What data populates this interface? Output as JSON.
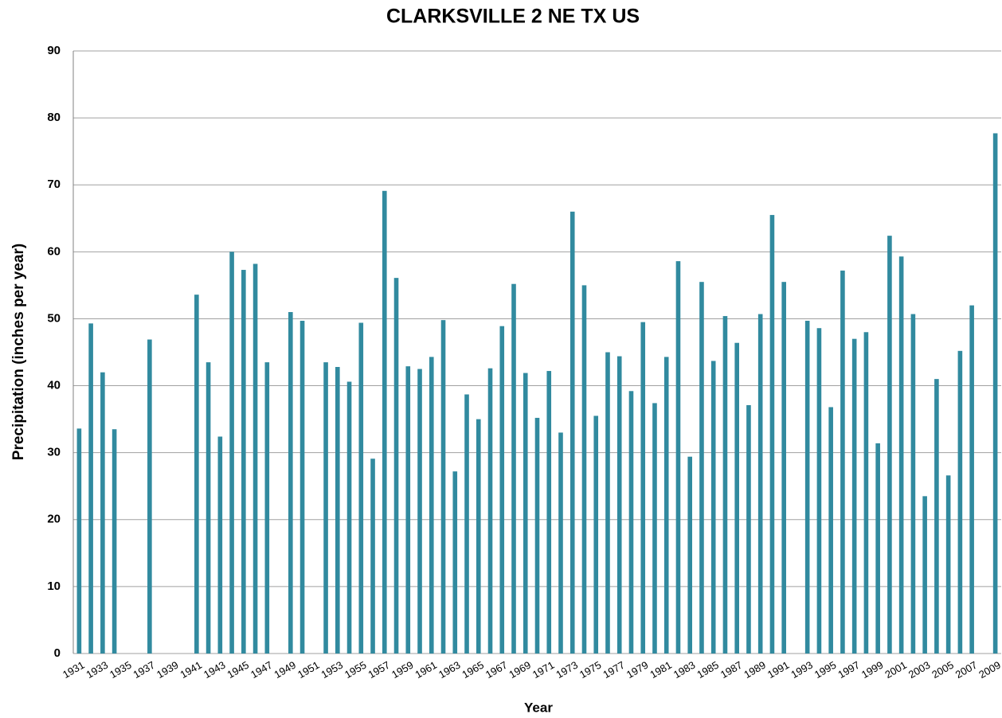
{
  "chart_data": {
    "type": "bar",
    "title": "CLARKSVILLE 2 NE TX US",
    "x_label": "Year",
    "y_label": "Precipitation (inches per year)",
    "categories": [
      "1931",
      null,
      "1933",
      null,
      "1935",
      null,
      "1937",
      null,
      "1939",
      null,
      "1941",
      null,
      "1943",
      null,
      "1945",
      null,
      "1947",
      null,
      "1949",
      null,
      "1951",
      null,
      "1953",
      null,
      "1955",
      null,
      "1957",
      null,
      "1959",
      null,
      "1961",
      null,
      "1963",
      null,
      "1965",
      null,
      "1967",
      null,
      "1969",
      null,
      "1971",
      null,
      "1973",
      null,
      "1975",
      null,
      "1977",
      null,
      "1979",
      null,
      "1981",
      null,
      "1983",
      null,
      "1985",
      null,
      "1987",
      null,
      "1989",
      null,
      "1991",
      null,
      "1993",
      null,
      "1995",
      null,
      "1997",
      null,
      "1999",
      null,
      "2001",
      null,
      "2003",
      null,
      "2005",
      null,
      "2007",
      null,
      "2009"
    ],
    "values": [
      33.6,
      49.3,
      42.0,
      33.5,
      null,
      null,
      46.9,
      null,
      null,
      null,
      53.6,
      43.5,
      32.4,
      60.0,
      57.3,
      58.2,
      43.5,
      null,
      51.0,
      49.7,
      null,
      43.5,
      42.8,
      40.6,
      49.4,
      29.1,
      69.1,
      56.1,
      42.9,
      42.5,
      44.3,
      49.8,
      27.2,
      38.7,
      35.0,
      42.6,
      48.9,
      55.2,
      41.9,
      35.2,
      42.2,
      33.0,
      66.0,
      55.0,
      35.5,
      45.0,
      44.4,
      39.2,
      49.5,
      37.4,
      44.3,
      58.6,
      29.4,
      55.5,
      43.7,
      50.4,
      46.4,
      37.1,
      50.7,
      65.5,
      55.5,
      null,
      49.7,
      48.6,
      36.8,
      57.2,
      47.0,
      48.0,
      31.4,
      62.4,
      59.3,
      50.7,
      23.5,
      41.0,
      26.6,
      45.2,
      52.0,
      null,
      77.7
    ],
    "color": "#318a9f",
    "ylim": [
      0,
      90
    ],
    "yticks": [
      0,
      10,
      20,
      30,
      40,
      50,
      60,
      70,
      80,
      90
    ],
    "grid": true
  }
}
